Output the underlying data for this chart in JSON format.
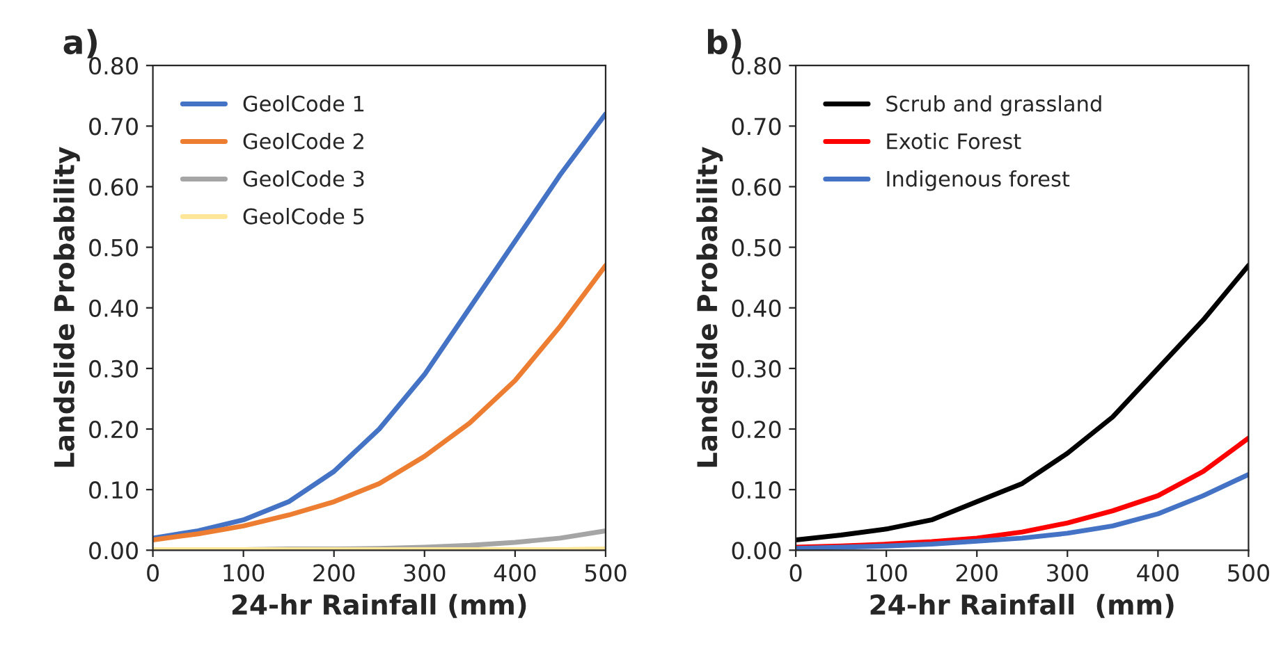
{
  "chart_data": [
    {
      "type": "line",
      "title": "a)",
      "xlabel": "24-hr Rainfall (mm)",
      "ylabel": "Landslide Probability",
      "x": [
        0,
        50,
        100,
        150,
        200,
        250,
        300,
        350,
        400,
        450,
        500
      ],
      "series": [
        {
          "name": "GeolCode 1",
          "color": "#4472c4",
          "values": [
            0.02,
            0.032,
            0.05,
            0.08,
            0.13,
            0.2,
            0.29,
            0.4,
            0.51,
            0.62,
            0.72
          ]
        },
        {
          "name": "GeolCode 2",
          "color": "#ed7d31",
          "values": [
            0.017,
            0.027,
            0.04,
            0.058,
            0.08,
            0.11,
            0.155,
            0.21,
            0.28,
            0.37,
            0.47
          ]
        },
        {
          "name": "GeolCode 3",
          "color": "#a5a5a5",
          "values": [
            0.001,
            0.001,
            0.001,
            0.002,
            0.002,
            0.003,
            0.005,
            0.008,
            0.013,
            0.02,
            0.032
          ]
        },
        {
          "name": "GeolCode 5",
          "color": "#ffe699",
          "values": [
            0.001,
            0.001,
            0.001,
            0.001,
            0.001,
            0.001,
            0.001,
            0.001,
            0.001,
            0.001,
            0.002
          ]
        }
      ],
      "xlim": [
        0,
        500
      ],
      "xticks": [
        0,
        100,
        200,
        300,
        400,
        500
      ],
      "ylim": [
        0,
        0.8
      ],
      "yticks": [
        {
          "value": 0,
          "label": "0.00"
        },
        {
          "value": 0.1,
          "label": "0.10"
        },
        {
          "value": 0.2,
          "label": "0.20"
        },
        {
          "value": 0.3,
          "label": "0.30"
        },
        {
          "value": 0.4,
          "label": "0.40"
        },
        {
          "value": 0.5,
          "label": "0.50"
        },
        {
          "value": 0.6,
          "label": "0.60"
        },
        {
          "value": 0.7,
          "label": "0.70"
        },
        {
          "value": 0.8,
          "label": "0.80"
        }
      ],
      "grid": false,
      "legend": "top left",
      "marker": "none",
      "line_style": "solid"
    },
    {
      "type": "line",
      "title": "b)",
      "xlabel": "24-hr Rainfall  (mm)",
      "ylabel": "Landslide Probability",
      "x": [
        0,
        50,
        100,
        150,
        200,
        250,
        300,
        350,
        400,
        450,
        500
      ],
      "series": [
        {
          "name": "Scrub and grassland",
          "color": "#000000",
          "values": [
            0.017,
            0.025,
            0.035,
            0.05,
            0.08,
            0.11,
            0.16,
            0.22,
            0.3,
            0.38,
            0.47
          ]
        },
        {
          "name": "Exotic Forest",
          "color": "#ff0000",
          "values": [
            0.005,
            0.007,
            0.01,
            0.014,
            0.02,
            0.03,
            0.045,
            0.065,
            0.09,
            0.13,
            0.185
          ]
        },
        {
          "name": "Indigenous forest",
          "color": "#4472c4",
          "values": [
            0.003,
            0.005,
            0.007,
            0.01,
            0.015,
            0.02,
            0.028,
            0.04,
            0.06,
            0.09,
            0.125
          ]
        }
      ],
      "xlim": [
        0,
        500
      ],
      "xticks": [
        0,
        100,
        200,
        300,
        400,
        500
      ],
      "ylim": [
        0,
        0.8
      ],
      "yticks": [
        {
          "value": 0,
          "label": "0.00"
        },
        {
          "value": 0.1,
          "label": "0.10"
        },
        {
          "value": 0.2,
          "label": "0.20"
        },
        {
          "value": 0.3,
          "label": "0.30"
        },
        {
          "value": 0.4,
          "label": "0.40"
        },
        {
          "value": 0.5,
          "label": "0.50"
        },
        {
          "value": 0.6,
          "label": "0.60"
        },
        {
          "value": 0.7,
          "label": "0.70"
        },
        {
          "value": 0.8,
          "label": "0.80"
        }
      ],
      "grid": false,
      "legend": "top left",
      "marker": "none",
      "line_style": "solid"
    }
  ]
}
